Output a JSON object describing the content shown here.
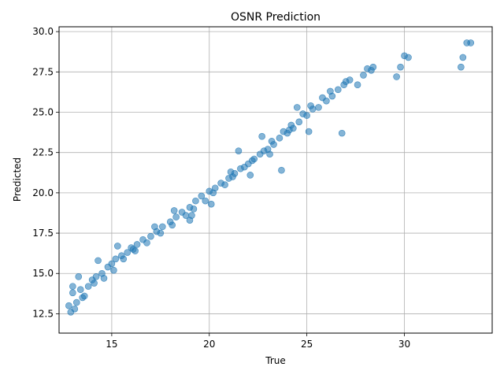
{
  "chart_data": {
    "type": "scatter",
    "title": "OSNR Prediction",
    "xlabel": "True",
    "ylabel": "Predicted",
    "xlim": [
      12.3,
      34.5
    ],
    "ylim": [
      11.3,
      30.3
    ],
    "x_ticks": [
      15,
      20,
      25,
      30
    ],
    "y_ticks": [
      12.5,
      15.0,
      17.5,
      20.0,
      22.5,
      25.0,
      27.5,
      30.0
    ],
    "x_tick_labels": [
      "15",
      "20",
      "25",
      "30"
    ],
    "y_tick_labels": [
      "12.5",
      "15.0",
      "17.5",
      "20.0",
      "22.5",
      "25.0",
      "27.5",
      "30.0"
    ],
    "grid": true,
    "marker_color": "#1f77b4",
    "marker_alpha": 0.55,
    "series": [
      {
        "x": [
          12.8,
          12.9,
          13.0,
          13.2,
          13.4,
          13.6,
          13.8,
          14.0,
          14.2,
          14.5,
          14.8,
          15.0,
          15.2,
          15.5,
          15.8,
          16.0,
          16.3,
          16.6,
          17.0,
          17.3,
          17.6,
          18.0,
          18.3,
          18.6,
          19.0,
          19.3,
          19.6,
          20.0,
          20.3,
          20.6,
          21.0,
          21.3,
          21.6,
          22.0,
          22.3,
          22.6,
          23.0,
          23.3,
          23.6,
          24.0,
          24.3,
          24.6,
          25.0,
          25.3,
          25.6,
          26.0,
          26.3,
          26.6,
          26.9,
          27.0,
          27.2,
          27.6,
          27.9,
          28.1,
          28.3,
          28.4,
          29.6,
          29.8,
          30.0,
          30.2,
          32.9,
          33.0,
          33.2,
          33.4,
          13.1,
          13.5,
          14.1,
          14.6,
          15.1,
          15.6,
          16.1,
          16.8,
          17.5,
          18.1,
          18.8,
          19.2,
          19.8,
          20.2,
          20.8,
          21.2,
          21.8,
          22.2,
          22.8,
          23.2,
          23.8,
          24.2,
          24.8,
          25.2,
          25.8,
          26.2,
          13.3,
          14.3,
          15.3,
          16.2,
          17.2,
          18.2,
          19.1,
          20.1,
          21.1,
          22.1,
          23.1,
          24.1,
          25.1,
          23.7,
          26.8,
          13.0,
          19.0,
          22.7,
          24.5,
          21.5
        ],
        "y": [
          13.0,
          12.6,
          13.8,
          13.2,
          14.0,
          13.6,
          14.2,
          14.6,
          14.8,
          15.0,
          15.4,
          15.6,
          15.9,
          16.1,
          16.3,
          16.6,
          16.8,
          17.1,
          17.3,
          17.6,
          17.9,
          18.2,
          18.5,
          18.8,
          19.1,
          19.5,
          19.8,
          20.1,
          20.3,
          20.6,
          20.9,
          21.2,
          21.5,
          21.8,
          22.1,
          22.4,
          22.7,
          23.0,
          23.4,
          23.7,
          24.0,
          24.4,
          24.8,
          25.2,
          25.3,
          25.7,
          26.0,
          26.4,
          26.7,
          26.9,
          27.0,
          26.7,
          27.3,
          27.7,
          27.6,
          27.8,
          27.2,
          27.8,
          28.5,
          28.4,
          27.8,
          28.4,
          29.3,
          29.3,
          12.8,
          13.5,
          14.4,
          14.7,
          15.2,
          15.9,
          16.5,
          16.9,
          17.5,
          18.0,
          18.6,
          19.0,
          19.5,
          20.0,
          20.5,
          21.0,
          21.6,
          22.0,
          22.6,
          23.2,
          23.8,
          24.2,
          24.9,
          25.4,
          25.9,
          26.3,
          14.8,
          15.8,
          16.7,
          16.4,
          17.9,
          18.9,
          18.6,
          19.3,
          21.3,
          21.1,
          22.4,
          23.9,
          23.8,
          21.4,
          23.7,
          14.2,
          18.3,
          23.5,
          25.3,
          22.6
        ]
      }
    ]
  }
}
